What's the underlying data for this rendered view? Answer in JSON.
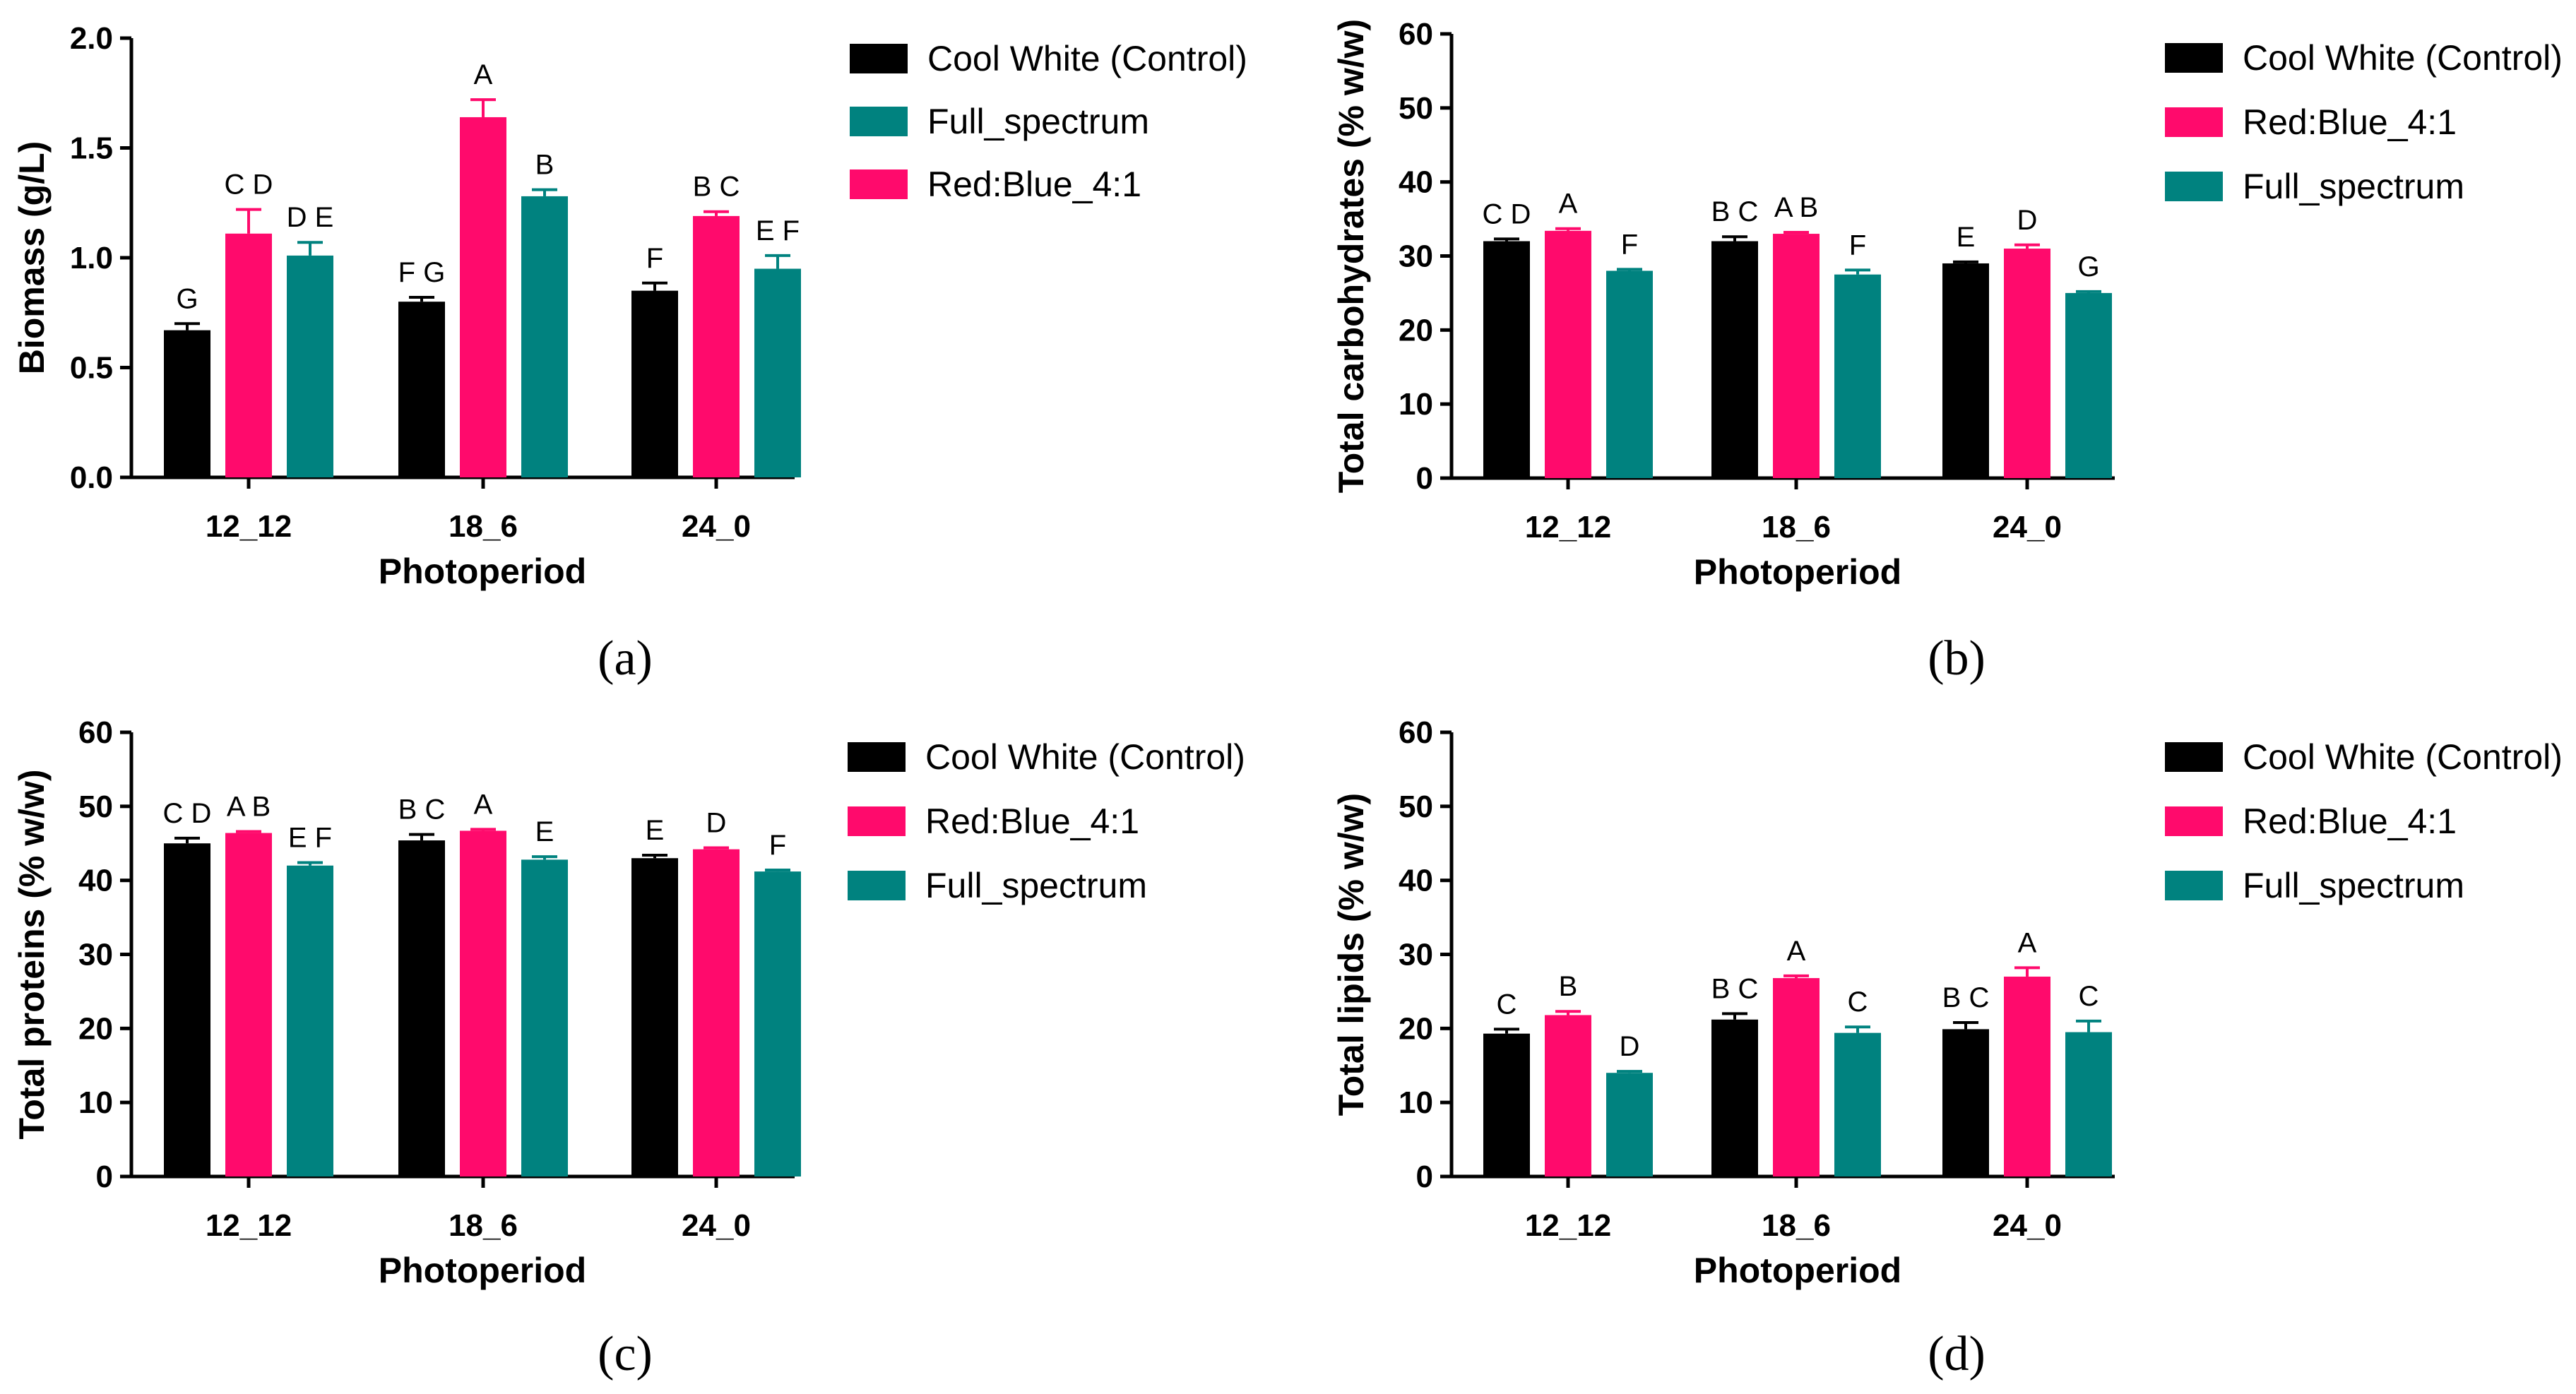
{
  "colors": {
    "control": "#000000",
    "red_blue": "#ff0a6c",
    "full": "#00827f"
  },
  "chart_data": [
    {
      "type": "bar",
      "panel_label": "(a)",
      "panel_letter": "a",
      "xlabel": "Photoperiod",
      "ylabel": "Biomass (g/L)",
      "ylim": [
        0,
        2.0
      ],
      "yticks": [
        "0.0",
        "0.5",
        "1.0",
        "1.5",
        "2.0"
      ],
      "categories": [
        "12_12",
        "18_6",
        "24_0"
      ],
      "series": [
        {
          "name": "Cool White (Control)",
          "color_key": "control",
          "values": [
            0.67,
            0.8,
            0.85
          ],
          "errors": [
            0.03,
            0.02,
            0.035
          ],
          "letters": [
            "G",
            "F G",
            "F"
          ]
        },
        {
          "name": "Red:Blue_4:1",
          "color_key": "red_blue",
          "values": [
            1.11,
            1.64,
            1.19
          ],
          "errors": [
            0.11,
            0.08,
            0.02
          ],
          "letters": [
            "C D",
            "A",
            "B C"
          ]
        },
        {
          "name": "Full_spectrum",
          "color_key": "full",
          "values": [
            1.01,
            1.28,
            0.95
          ],
          "errors": [
            0.06,
            0.03,
            0.06
          ],
          "letters": [
            "D E",
            "B",
            "E F"
          ]
        }
      ],
      "bar_order": [
        0,
        1,
        2
      ],
      "legend_order": [
        0,
        2,
        1
      ]
    },
    {
      "type": "bar",
      "panel_label": "(b)",
      "panel_letter": "b",
      "xlabel": "Photoperiod",
      "ylabel": "Total carbohydrates (% w/w)",
      "ylim": [
        0,
        60
      ],
      "yticks": [
        "0",
        "10",
        "20",
        "30",
        "40",
        "50",
        "60"
      ],
      "categories": [
        "12_12",
        "18_6",
        "24_0"
      ],
      "series": [
        {
          "name": "Cool White (Control)",
          "color_key": "control",
          "values": [
            32.0,
            32.0,
            29.0
          ],
          "errors": [
            0.3,
            0.6,
            0.2
          ],
          "letters": [
            "C D",
            "B C",
            "E"
          ]
        },
        {
          "name": "Red:Blue_4:1",
          "color_key": "red_blue",
          "values": [
            33.4,
            33.0,
            31.0
          ],
          "errors": [
            0.3,
            0.2,
            0.5
          ],
          "letters": [
            "A",
            "A B",
            "D"
          ]
        },
        {
          "name": "Full_spectrum",
          "color_key": "full",
          "values": [
            28.0,
            27.5,
            25.0
          ],
          "errors": [
            0.2,
            0.6,
            0.2
          ],
          "letters": [
            "F",
            "F",
            "G"
          ]
        }
      ],
      "bar_order": [
        0,
        1,
        2
      ],
      "legend_order": [
        0,
        1,
        2
      ]
    },
    {
      "type": "bar",
      "panel_label": "(c)",
      "panel_letter": "c",
      "xlabel": "Photoperiod",
      "ylabel": "Total proteins (% w/w)",
      "ylim": [
        0,
        60
      ],
      "yticks": [
        "0",
        "10",
        "20",
        "30",
        "40",
        "50",
        "60"
      ],
      "categories": [
        "12_12",
        "18_6",
        "24_0"
      ],
      "series": [
        {
          "name": "Cool White (Control)",
          "color_key": "control",
          "values": [
            45.0,
            45.4,
            43.0
          ],
          "errors": [
            0.7,
            0.8,
            0.4
          ],
          "letters": [
            "C D",
            "B C",
            "E"
          ]
        },
        {
          "name": "Red:Blue_4:1",
          "color_key": "red_blue",
          "values": [
            46.4,
            46.7,
            44.2
          ],
          "errors": [
            0.2,
            0.2,
            0.2
          ],
          "letters": [
            "A B",
            "A",
            "D"
          ]
        },
        {
          "name": "Full_spectrum",
          "color_key": "full",
          "values": [
            42.0,
            42.8,
            41.2
          ],
          "errors": [
            0.4,
            0.4,
            0.2
          ],
          "letters": [
            "E F",
            "E",
            "F"
          ]
        }
      ],
      "bar_order": [
        0,
        1,
        2
      ],
      "legend_order": [
        0,
        1,
        2
      ]
    },
    {
      "type": "bar",
      "panel_label": "(d)",
      "panel_letter": "d",
      "xlabel": "Photoperiod",
      "ylabel": "Total lipids (% w/w)",
      "ylim": [
        0,
        60
      ],
      "yticks": [
        "0",
        "10",
        "20",
        "30",
        "40",
        "50",
        "60"
      ],
      "categories": [
        "12_12",
        "18_6",
        "24_0"
      ],
      "series": [
        {
          "name": "Cool White (Control)",
          "color_key": "control",
          "values": [
            19.3,
            21.2,
            19.9
          ],
          "errors": [
            0.6,
            0.8,
            0.9
          ],
          "letters": [
            "C",
            "B C",
            "B C"
          ]
        },
        {
          "name": "Red:Blue_4:1",
          "color_key": "red_blue",
          "values": [
            21.8,
            26.8,
            27.0
          ],
          "errors": [
            0.5,
            0.3,
            1.2
          ],
          "letters": [
            "B",
            "A",
            "A"
          ]
        },
        {
          "name": "Full_spectrum",
          "color_key": "full",
          "values": [
            14.0,
            19.4,
            19.5
          ],
          "errors": [
            0.2,
            0.8,
            1.5
          ],
          "letters": [
            "D",
            "C",
            "C"
          ]
        }
      ],
      "bar_order": [
        0,
        1,
        2
      ],
      "legend_order": [
        0,
        1,
        2
      ]
    }
  ]
}
